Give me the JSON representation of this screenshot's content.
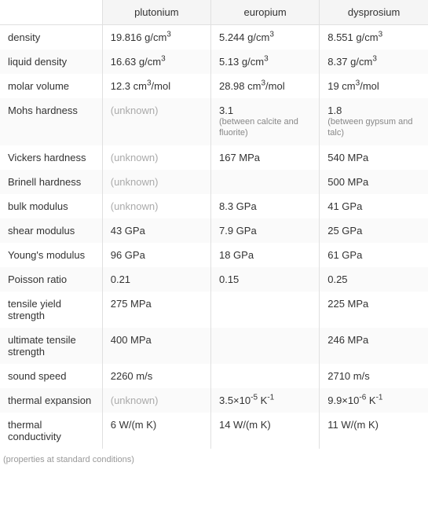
{
  "columns": [
    "",
    "plutonium",
    "europium",
    "dysprosium"
  ],
  "rows": [
    {
      "label": "density",
      "plutonium": {
        "val": "19.816 g/cm",
        "sup": "3"
      },
      "europium": {
        "val": "5.244 g/cm",
        "sup": "3"
      },
      "dysprosium": {
        "val": "8.551 g/cm",
        "sup": "3"
      }
    },
    {
      "label": "liquid density",
      "plutonium": {
        "val": "16.63 g/cm",
        "sup": "3"
      },
      "europium": {
        "val": "5.13 g/cm",
        "sup": "3"
      },
      "dysprosium": {
        "val": "8.37 g/cm",
        "sup": "3"
      }
    },
    {
      "label": "molar volume",
      "plutonium": {
        "val": "12.3 cm",
        "sup": "3",
        "after": "/mol"
      },
      "europium": {
        "val": "28.98 cm",
        "sup": "3",
        "after": "/mol"
      },
      "dysprosium": {
        "val": "19 cm",
        "sup": "3",
        "after": "/mol"
      }
    },
    {
      "label": "Mohs hardness",
      "plutonium": {
        "val": "(unknown)",
        "unknown": true
      },
      "europium": {
        "val": "3.1",
        "sub": "(between calcite and fluorite)"
      },
      "dysprosium": {
        "val": "1.8",
        "sub": "(between gypsum and talc)"
      }
    },
    {
      "label": "Vickers hardness",
      "plutonium": {
        "val": "(unknown)",
        "unknown": true
      },
      "europium": {
        "val": "167 MPa"
      },
      "dysprosium": {
        "val": "540 MPa"
      }
    },
    {
      "label": "Brinell hardness",
      "plutonium": {
        "val": "(unknown)",
        "unknown": true
      },
      "europium": {
        "val": ""
      },
      "dysprosium": {
        "val": "500 MPa"
      }
    },
    {
      "label": "bulk modulus",
      "plutonium": {
        "val": "(unknown)",
        "unknown": true
      },
      "europium": {
        "val": "8.3 GPa"
      },
      "dysprosium": {
        "val": "41 GPa"
      }
    },
    {
      "label": "shear modulus",
      "plutonium": {
        "val": "43 GPa"
      },
      "europium": {
        "val": "7.9 GPa"
      },
      "dysprosium": {
        "val": "25 GPa"
      }
    },
    {
      "label": "Young's modulus",
      "plutonium": {
        "val": "96 GPa"
      },
      "europium": {
        "val": "18 GPa"
      },
      "dysprosium": {
        "val": "61 GPa"
      }
    },
    {
      "label": "Poisson ratio",
      "plutonium": {
        "val": "0.21"
      },
      "europium": {
        "val": "0.15"
      },
      "dysprosium": {
        "val": "0.25"
      }
    },
    {
      "label": "tensile yield strength",
      "plutonium": {
        "val": "275 MPa"
      },
      "europium": {
        "val": ""
      },
      "dysprosium": {
        "val": "225 MPa"
      }
    },
    {
      "label": "ultimate tensile strength",
      "plutonium": {
        "val": "400 MPa"
      },
      "europium": {
        "val": ""
      },
      "dysprosium": {
        "val": "246 MPa"
      }
    },
    {
      "label": "sound speed",
      "plutonium": {
        "val": "2260 m/s"
      },
      "europium": {
        "val": ""
      },
      "dysprosium": {
        "val": "2710 m/s"
      }
    },
    {
      "label": "thermal expansion",
      "plutonium": {
        "val": "(unknown)",
        "unknown": true
      },
      "europium": {
        "val": "3.5×10",
        "sup": "-5",
        "after": " K",
        "sup2": "-1"
      },
      "dysprosium": {
        "val": "9.9×10",
        "sup": "-6",
        "after": " K",
        "sup2": "-1"
      }
    },
    {
      "label": "thermal conductivity",
      "plutonium": {
        "val": "6 W/(m K)"
      },
      "europium": {
        "val": "14 W/(m K)"
      },
      "dysprosium": {
        "val": "11 W/(m K)"
      }
    }
  ],
  "footer": "(properties at standard conditions)",
  "colors": {
    "header_bg": "#f5f5f5",
    "border": "#e0e0e0",
    "text": "#333333",
    "unknown": "#aaaaaa",
    "sub": "#888888",
    "footer": "#999999",
    "row_alt": "#fafafa",
    "row": "#ffffff"
  },
  "font_sizes": {
    "cell": 13,
    "sub": 11,
    "sup": 10,
    "footer": 11
  }
}
